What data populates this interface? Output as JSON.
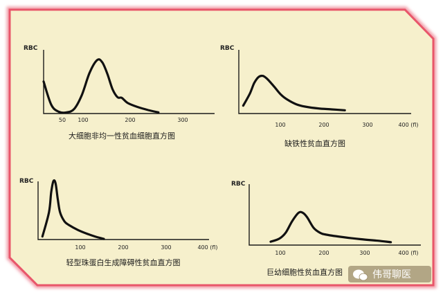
{
  "watermark": {
    "text": "伟哥聊医",
    "icon": "wechat-icon"
  },
  "colors": {
    "card_fill": "#f6f0cc",
    "card_border": "#e8566a",
    "curve": "#111111",
    "watermark_bg": "#7a6a4a"
  },
  "chart_data": [
    {
      "type": "line",
      "ylabel": "RBC",
      "caption": "大细胞非均一性贫血细胞直方图",
      "xlim": [
        25,
        360
      ],
      "ylim": [
        0,
        1
      ],
      "xticks": [
        "50",
        "100",
        "200",
        "300"
      ],
      "x": [
        25,
        40,
        55,
        70,
        85,
        100,
        115,
        130,
        140,
        150,
        160,
        170,
        178,
        190,
        210,
        230,
        250
      ],
      "values": [
        0.55,
        0.15,
        0.03,
        0.02,
        0.08,
        0.32,
        0.7,
        0.92,
        0.88,
        0.68,
        0.42,
        0.28,
        0.27,
        0.18,
        0.11,
        0.06,
        0.02
      ]
    },
    {
      "type": "line",
      "ylabel": "RBC",
      "caption": "缺铁性贫血直方图",
      "xlim": [
        20,
        410
      ],
      "ylim": [
        0,
        1
      ],
      "xticks": [
        "100",
        "200",
        "300",
        "400 (fl)"
      ],
      "x": [
        30,
        45,
        55,
        65,
        75,
        85,
        100,
        115,
        130,
        150,
        170,
        200,
        230,
        260
      ],
      "values": [
        0.14,
        0.4,
        0.63,
        0.76,
        0.78,
        0.71,
        0.55,
        0.38,
        0.27,
        0.17,
        0.12,
        0.08,
        0.06,
        0.04
      ]
    },
    {
      "type": "line",
      "ylabel": "RBC",
      "caption": "轻型珠蛋白生成障碍性贫血直方图",
      "xlim": [
        10,
        400
      ],
      "ylim": [
        0,
        1
      ],
      "xticks": [
        "100",
        "200",
        "300",
        "400 (fl)"
      ],
      "x": [
        20,
        35,
        40,
        45,
        50,
        55,
        60,
        70,
        80,
        100,
        120,
        140,
        160
      ],
      "values": [
        0.05,
        0.45,
        0.78,
        0.96,
        0.92,
        0.66,
        0.45,
        0.3,
        0.24,
        0.16,
        0.1,
        0.05,
        0.01
      ]
    },
    {
      "type": "line",
      "ylabel": "RBC",
      "caption": "巨幼细胞性贫血直方图",
      "xlim": [
        20,
        420
      ],
      "ylim": [
        0,
        1
      ],
      "xticks": [
        "100",
        "200",
        "300",
        "400 (fl)"
      ],
      "x": [
        70,
        90,
        105,
        120,
        135,
        145,
        155,
        170,
        185,
        200,
        240,
        280,
        320,
        350
      ],
      "values": [
        0.04,
        0.1,
        0.22,
        0.45,
        0.62,
        0.62,
        0.53,
        0.32,
        0.22,
        0.18,
        0.13,
        0.09,
        0.06,
        0.03
      ]
    }
  ]
}
